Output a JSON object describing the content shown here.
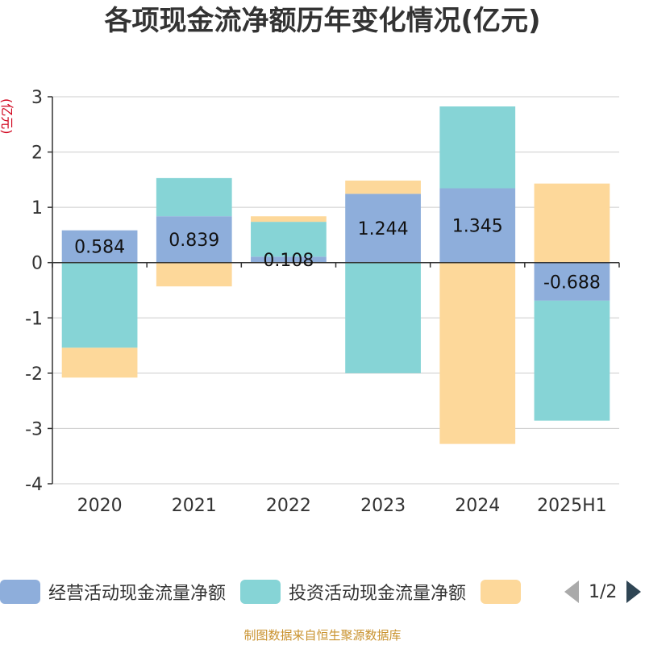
{
  "title": "各项现金流净额历年变化情况(亿元)",
  "footer": "制图数据来自恒生聚源数据库",
  "legend_pager": "1/2",
  "chart_data": {
    "type": "bar",
    "stacked": true,
    "title": "各项现金流净额历年变化情况(亿元)",
    "ylabel": "(亿元)",
    "ylim": [
      -4,
      3
    ],
    "yticks": [
      "3",
      "2",
      "1",
      "0",
      "-1",
      "-2",
      "-3",
      "-4"
    ],
    "grid": true,
    "legend_position": "bottom",
    "categories": [
      "2020",
      "2021",
      "2022",
      "2023",
      "2024",
      "2025H1"
    ],
    "series": [
      {
        "name": "经营活动现金流量净额",
        "color": "#8eaedb",
        "values": [
          0.584,
          0.839,
          0.108,
          1.244,
          1.345,
          -0.688
        ],
        "labels": [
          "0.584",
          "0.839",
          "0.108",
          "1.244",
          "1.345",
          "-0.688"
        ]
      },
      {
        "name": "投资活动现金流量净额",
        "color": "#86d4d6",
        "values": [
          -1.54,
          0.69,
          0.63,
          -2.0,
          1.48,
          -2.17
        ]
      },
      {
        "name": "",
        "color": "#fdd89a",
        "values": [
          -0.54,
          -0.43,
          0.1,
          0.24,
          -3.28,
          1.43
        ]
      }
    ]
  }
}
